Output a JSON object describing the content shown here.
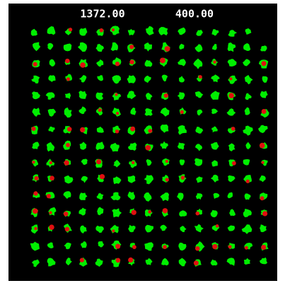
{
  "header": {
    "left_value": "1372.00",
    "right_value": "400.00"
  }
}
